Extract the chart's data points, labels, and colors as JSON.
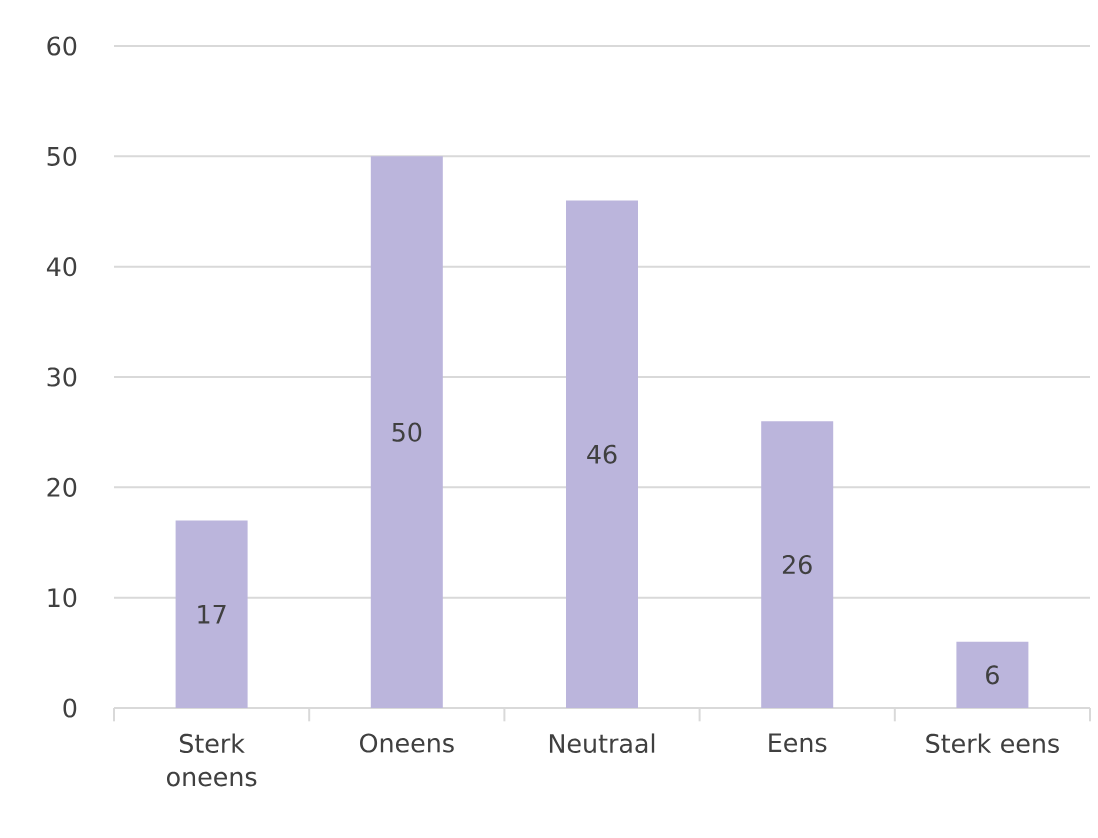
{
  "chart_data": {
    "type": "bar",
    "categories": [
      "Sterk oneens",
      "Oneens",
      "Neutraal",
      "Eens",
      "Sterk eens"
    ],
    "values": [
      17,
      50,
      46,
      26,
      6
    ],
    "color": "#bbb5dc",
    "ylim": [
      0,
      60
    ],
    "yticks": [
      0,
      10,
      20,
      30,
      40,
      50,
      60
    ],
    "grid": "y",
    "data_labels": true
  }
}
